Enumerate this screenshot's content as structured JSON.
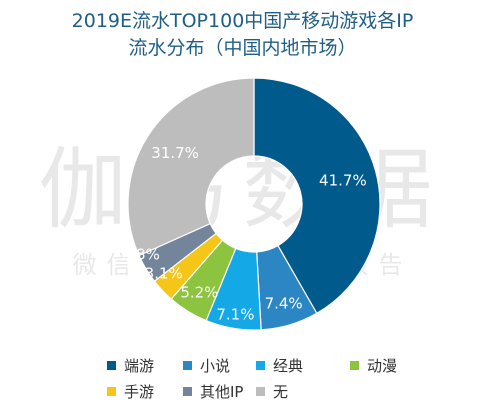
{
  "title": {
    "line1": "2019E流水TOP100中国产移动游戏各IP",
    "line2": "流水分布（中国内地市场）"
  },
  "watermark": {
    "main": "伽马数据",
    "sub": "微信号：游戏产业报告"
  },
  "chart_data": {
    "type": "pie",
    "donut": true,
    "title": "2019E流水TOP100中国产移动游戏各IP流水分布（中国内地市场）",
    "labels": [
      "端游",
      "小说",
      "经典",
      "动漫",
      "手游",
      "其他IP",
      "无"
    ],
    "values": [
      41.7,
      7.4,
      7.1,
      5.2,
      3.1,
      3.8,
      31.7
    ],
    "value_labels": [
      "41.7%",
      "7.4%",
      "7.1%",
      "5.2%",
      "3.1%",
      "3.8%",
      "31.7%"
    ],
    "colors": [
      "#005a8c",
      "#2d86c4",
      "#14a9e6",
      "#8cc43f",
      "#f5c518",
      "#73859a",
      "#bdbdbd"
    ],
    "legend_position": "bottom",
    "start_angle": "top",
    "direction": "clockwise"
  }
}
